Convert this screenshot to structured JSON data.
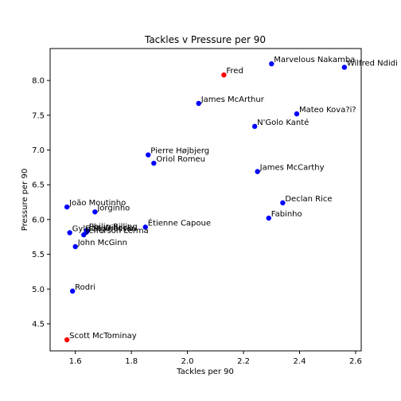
{
  "chart_data": {
    "type": "scatter",
    "title": "Tackles v Pressure per 90",
    "xlabel": "Tackles per 90",
    "ylabel": "Pressure per 90",
    "xlim": [
      1.51,
      2.62
    ],
    "ylim": [
      4.11,
      8.46
    ],
    "xticks": [
      "1.6",
      "1.8",
      "2.0",
      "2.2",
      "2.4",
      "2.6"
    ],
    "yticks": [
      "4.5",
      "5.0",
      "5.5",
      "6.0",
      "6.5",
      "7.0",
      "7.5",
      "8.0"
    ],
    "grid": false,
    "colors": {
      "default": "#0000ff",
      "highlight": "#ff0000"
    },
    "points": [
      {
        "name": "Marvelous Nakamba",
        "x": 2.3,
        "y": 8.24,
        "color": "blue"
      },
      {
        "name": "Wilfred Ndidi",
        "x": 2.56,
        "y": 8.19,
        "color": "blue"
      },
      {
        "name": "Fred",
        "x": 2.13,
        "y": 8.08,
        "color": "red"
      },
      {
        "name": "James McArthur",
        "x": 2.04,
        "y": 7.67,
        "color": "blue"
      },
      {
        "name": "Mateo Kova?i?",
        "x": 2.39,
        "y": 7.52,
        "color": "blue"
      },
      {
        "name": "N'Golo Kanté",
        "x": 2.24,
        "y": 7.34,
        "color": "blue"
      },
      {
        "name": "Pierre Højbjerg",
        "x": 1.86,
        "y": 6.93,
        "color": "blue"
      },
      {
        "name": "Oriol Romeu",
        "x": 1.88,
        "y": 6.81,
        "color": "blue"
      },
      {
        "name": "James McCarthy",
        "x": 2.25,
        "y": 6.69,
        "color": "blue"
      },
      {
        "name": "Declan Rice",
        "x": 2.34,
        "y": 6.24,
        "color": "blue"
      },
      {
        "name": "João Moutinho",
        "x": 1.57,
        "y": 6.18,
        "color": "blue"
      },
      {
        "name": "Jorginho",
        "x": 1.67,
        "y": 6.11,
        "color": "blue"
      },
      {
        "name": "Fabinho",
        "x": 2.29,
        "y": 6.02,
        "color": "blue"
      },
      {
        "name": "Étienne Capoue",
        "x": 1.85,
        "y": 5.89,
        "color": "blue"
      },
      {
        "name": "Philip Billing",
        "x": 1.64,
        "y": 5.84,
        "color": "blue"
      },
      {
        "name": "Gylfi Sigurðsson",
        "x": 1.58,
        "y": 5.81,
        "color": "blue"
      },
      {
        "name": "Joe Willock",
        "x": 1.64,
        "y": 5.82,
        "color": "blue"
      },
      {
        "name": "Jefferson Lerma",
        "x": 1.63,
        "y": 5.78,
        "color": "blue"
      },
      {
        "name": "John McGinn",
        "x": 1.6,
        "y": 5.61,
        "color": "blue"
      },
      {
        "name": "Rodri",
        "x": 1.59,
        "y": 4.97,
        "color": "blue"
      },
      {
        "name": "Scott McTominay",
        "x": 1.57,
        "y": 4.27,
        "color": "red"
      }
    ]
  }
}
